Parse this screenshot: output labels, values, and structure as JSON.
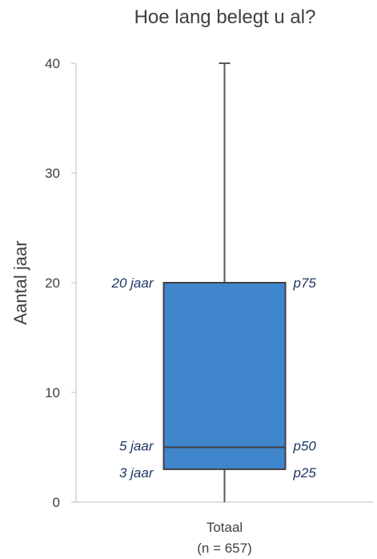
{
  "chart_data": {
    "type": "boxplot",
    "title": "Hoe lang belegt u al?",
    "ylabel": "Aantal jaar",
    "xlabel": "",
    "ylim": [
      0,
      40
    ],
    "yticks": [
      0,
      10,
      20,
      30,
      40
    ],
    "grid": false,
    "legend": "none",
    "categories": [
      {
        "label": "Totaal",
        "sublabel": "(n = 657)"
      }
    ],
    "boxes": [
      {
        "min": 0,
        "p25": 3,
        "median": 5,
        "p75": 20,
        "max": 40,
        "color": "#3f86cc"
      }
    ],
    "annotations": {
      "left": [
        {
          "value": 20,
          "text": "20 jaar"
        },
        {
          "value": 5,
          "text": "5 jaar"
        },
        {
          "value": 3,
          "text": "3 jaar"
        }
      ],
      "right": [
        {
          "value": 20,
          "text": "p75"
        },
        {
          "value": 5,
          "text": "p50"
        },
        {
          "value": 3,
          "text": "p25"
        }
      ]
    }
  }
}
